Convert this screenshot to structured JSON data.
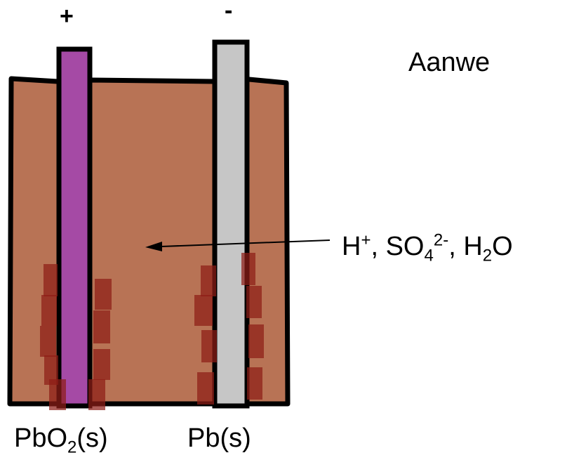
{
  "electrodes": {
    "positive_sign": "+",
    "negative_sign": "-"
  },
  "heading_partial": "Aanwe",
  "ions_label": {
    "h_base": "H",
    "h_charge": "+",
    "sep1": ", SO",
    "so4_sub": "4",
    "so4_charge": "2-",
    "sep2": ", H",
    "h2o_sub": "2",
    "h2o_tail": "O"
  },
  "pbo2_label": {
    "base": "PbO",
    "sub": "2",
    "tail": "(s)"
  },
  "pb_label": "Pb(s)",
  "colors": {
    "electrolyte": "#b87355",
    "anode_pbo2": "#a54aa5",
    "cathode_pb": "#c6c6c6",
    "sulfate_deposit": "#8e1d16",
    "outline": "#000000"
  }
}
